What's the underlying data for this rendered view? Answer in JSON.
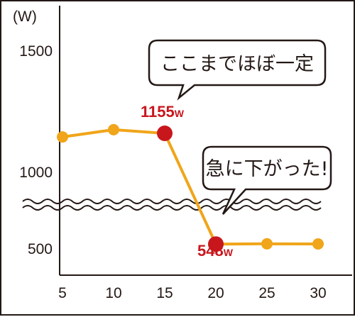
{
  "chart_data": {
    "type": "line",
    "y_unit": "(W)",
    "x_ticks": [
      "5",
      "10",
      "15",
      "20",
      "25",
      "30"
    ],
    "y_ticks": [
      "1500",
      "1000",
      "500"
    ],
    "axis_break": true,
    "series": [
      {
        "x": [
          5,
          10,
          15,
          20,
          25,
          30
        ],
        "y": [
          1140,
          1170,
          1155,
          548,
          552,
          550
        ]
      }
    ],
    "highlighted_points": [
      {
        "x": 15,
        "y": 1155,
        "value": "1155",
        "unit": "W"
      },
      {
        "x": 20,
        "y": 548,
        "value": "548",
        "unit": "W"
      }
    ],
    "annotations": [
      {
        "text": "ここまでほぼ一定",
        "points_to_x": 15
      },
      {
        "text": "急に下がった!",
        "points_to_x": 20
      }
    ],
    "colors": {
      "line": "#f0a51a",
      "highlight": "#c8161d",
      "axis": "#231815",
      "callout_border": "#231815",
      "callout_fill": "#ffffff"
    }
  }
}
